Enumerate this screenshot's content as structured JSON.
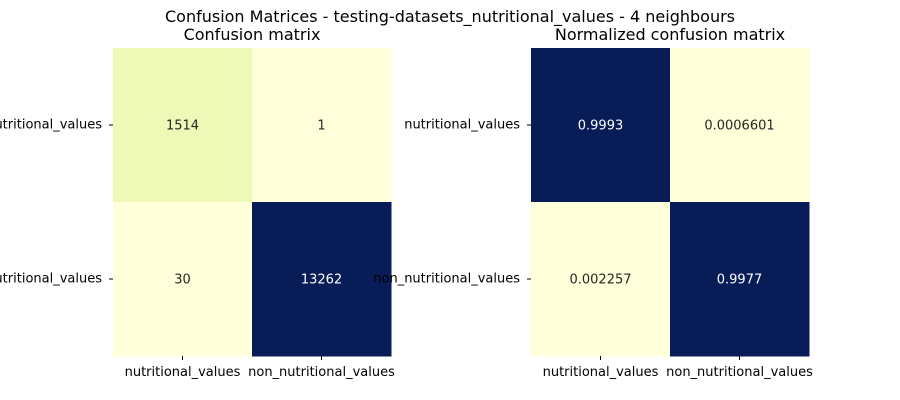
{
  "figure": {
    "title": "Confusion Matrices - testing-datasets_nutritional_values - 4 neighbours"
  },
  "chart_data": [
    {
      "type": "heatmap",
      "title": "Confusion matrix",
      "row_labels": [
        "nutritional_values",
        "non_nutritional_values"
      ],
      "col_labels": [
        "nutritional_values",
        "non_nutritional_values"
      ],
      "values": [
        [
          1514,
          1
        ],
        [
          30,
          13262
        ]
      ],
      "value_labels": [
        [
          "1514",
          "1"
        ],
        [
          "30",
          "13262"
        ]
      ],
      "colormap": "YlGnBu",
      "cell_colors": [
        [
          "#eef9b8",
          "#ffffd9"
        ],
        [
          "#ffffd9",
          "#081d58"
        ]
      ],
      "text_colors": [
        [
          "#262626",
          "#262626"
        ],
        [
          "#262626",
          "#ffffff"
        ]
      ],
      "colorbar": false
    },
    {
      "type": "heatmap",
      "title": "Normalized confusion matrix",
      "row_labels": [
        "nutritional_values",
        "non_nutritional_values"
      ],
      "col_labels": [
        "nutritional_values",
        "non_nutritional_values"
      ],
      "values": [
        [
          0.9993,
          0.0006601
        ],
        [
          0.002257,
          0.9977
        ]
      ],
      "value_labels": [
        [
          "0.9993",
          "0.0006601"
        ],
        [
          "0.002257",
          "0.9977"
        ]
      ],
      "colormap": "YlGnBu",
      "cell_colors": [
        [
          "#081d58",
          "#ffffd9"
        ],
        [
          "#ffffd9",
          "#081d58"
        ]
      ],
      "text_colors": [
        [
          "#ffffff",
          "#262626"
        ],
        [
          "#262626",
          "#ffffff"
        ]
      ],
      "colorbar": false
    }
  ]
}
